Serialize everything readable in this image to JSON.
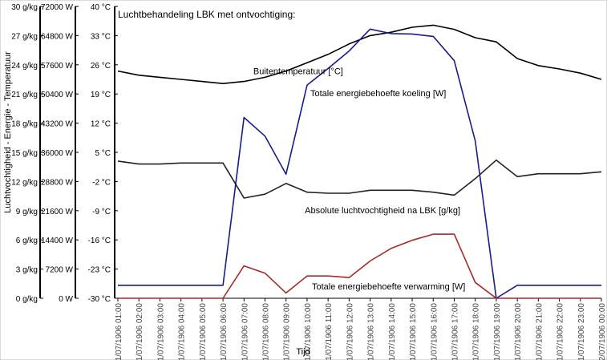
{
  "chart_data": {
    "type": "line",
    "title": "Luchtbehandeling LBK met ontvochtiging:",
    "xlabel": "Tijd",
    "ylabel": "Luchtvochtigheid - Energie - Temperatuur",
    "x_tick_labels": [
      "1/07/1906 01:00",
      "1/07/1906 02:00",
      "1/07/1906 03:00",
      "1/07/1906 04:00",
      "1/07/1906 05:00",
      "1/07/1906 06:00",
      "1/07/1906 07:00",
      "1/07/1906 08:00",
      "1/07/1906 09:00",
      "1/07/1906 10:00",
      "1/07/1906 11:00",
      "1/07/1906 12:00",
      "1/07/1906 13:00",
      "1/07/1906 14:00",
      "1/07/1906 15:00",
      "1/07/1906 16:00",
      "1/07/1906 17:00",
      "1/07/1906 18:00",
      "1/07/1906 19:00",
      "1/07/1906 20:00",
      "1/07/1906 21:00",
      "1/07/1906 22:00",
      "1/07/1906 23:00",
      "2/07/1906 00:00"
    ],
    "x": [
      1,
      2,
      3,
      4,
      5,
      6,
      7,
      8,
      9,
      10,
      11,
      12,
      13,
      14,
      15,
      16,
      17,
      18,
      19,
      20,
      21,
      22,
      23,
      24
    ],
    "axes": [
      {
        "id": "humidity",
        "unit": "g/kg",
        "ylim": [
          0,
          30
        ],
        "tick_labels": [
          "0 g/kg",
          "3 g/kg",
          "6 g/kg",
          "9 g/kg",
          "12 g/kg",
          "15 g/kg",
          "18 g/kg",
          "21 g/kg",
          "24 g/kg",
          "27 g/kg",
          "30 g/kg"
        ]
      },
      {
        "id": "energy",
        "unit": "W",
        "ylim": [
          0,
          72000
        ],
        "tick_labels": [
          "0 W",
          "7200 W",
          "14400 W",
          "21600 W",
          "28800 W",
          "36000 W",
          "43200 W",
          "50400 W",
          "57600 W",
          "64800 W",
          "72000 W"
        ]
      },
      {
        "id": "temperature",
        "unit": "°C",
        "ylim": [
          -30,
          40
        ],
        "tick_labels": [
          "-30 °C",
          "-23 °C",
          "-16 °C",
          "-9 °C",
          "-2 °C",
          "5 °C",
          "12 °C",
          "19 °C",
          "26 °C",
          "33 °C",
          "40 °C"
        ]
      }
    ],
    "grid": false,
    "series": [
      {
        "name": "Buitentemperatuur [°C]",
        "axis": "temperature",
        "color": "#000000",
        "values": [
          24.5,
          23.5,
          23,
          22.5,
          22,
          21.5,
          22,
          23,
          24.5,
          26.5,
          28.5,
          31,
          33,
          33.8,
          35,
          35.5,
          34.5,
          32.5,
          31.5,
          27.5,
          25.8,
          25,
          24,
          22.5
        ]
      },
      {
        "name": "Totale energiebehoefte koeling [W]",
        "axis": "energy",
        "color": "#1a1a8c",
        "values": [
          3200,
          3200,
          3200,
          3200,
          3200,
          3200,
          44600,
          40000,
          30600,
          52600,
          56700,
          61000,
          66400,
          65300,
          65200,
          64600,
          58600,
          38800,
          0,
          3200,
          3200,
          3200,
          3200,
          3200
        ]
      },
      {
        "name": "Absolute luchtvochtigheid na LBK [g/kg]",
        "axis": "humidity",
        "color": "#222222",
        "values": [
          14.1,
          13.8,
          13.8,
          13.9,
          13.9,
          13.9,
          10.3,
          10.7,
          11.8,
          10.9,
          10.8,
          10.8,
          11.1,
          11.1,
          11.1,
          10.9,
          10.6,
          12.3,
          14.2,
          12.5,
          12.8,
          12.8,
          12.8,
          13.0
        ]
      },
      {
        "name": "Totale energiebehoefte verwarming [W]",
        "axis": "energy",
        "color": "#a52a2a",
        "values": [
          0,
          0,
          0,
          0,
          0,
          0,
          8000,
          6200,
          1300,
          5500,
          5500,
          5100,
          9200,
          12300,
          14300,
          15800,
          15800,
          3900,
          0,
          0,
          0,
          0,
          0,
          0
        ]
      }
    ],
    "annotations": [
      {
        "text": "Buitentemperatuur [°C]",
        "series": 0
      },
      {
        "text": "Totale energiebehoefte koeling [W]",
        "series": 1
      },
      {
        "text": "Absolute luchtvochtigheid na LBK [g/kg]",
        "series": 2
      },
      {
        "text": "Totale energiebehoefte verwarming [W]",
        "series": 3
      }
    ]
  }
}
